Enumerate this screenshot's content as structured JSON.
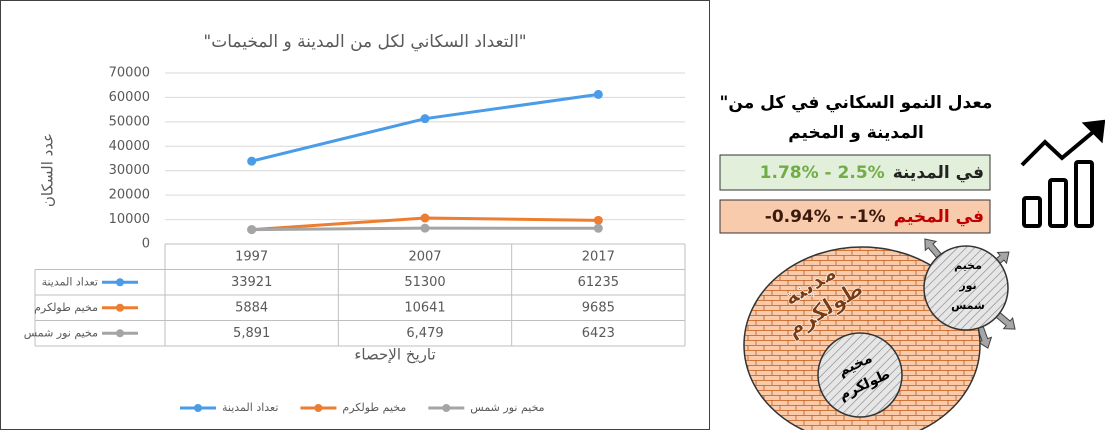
{
  "chart_data": {
    "type": "line",
    "title": "\"التعداد السكاني لكل من المدينة و المخيمات\"",
    "y_label": "عدد السكان",
    "x_label": "تاريخ الإحصاء",
    "categories": [
      "1997",
      "2007",
      "2017"
    ],
    "series": [
      {
        "name": "تعداد المدينة",
        "color": "#4a9be8",
        "values": [
          33921,
          51300,
          61235
        ]
      },
      {
        "name": "مخيم طولكرم",
        "color": "#ed7d31",
        "values": [
          5884,
          10641,
          9685
        ]
      },
      {
        "name": "مخيم نور شمس",
        "color": "#a5a5a5",
        "values": [
          5891,
          6479,
          6423
        ],
        "value_labels": [
          "5,891",
          "6,479",
          "6423"
        ]
      }
    ],
    "ylim": [
      0,
      70000
    ],
    "yticks": [
      0,
      10000,
      20000,
      30000,
      40000,
      50000,
      60000,
      70000
    ],
    "grid": true,
    "legend": "bottom"
  },
  "infographic": {
    "heading": [
      "\"معدل النمو السكاني في كل من",
      "المدينة و المخيم"
    ],
    "city_rate": {
      "range": "1.78% - 2.5%",
      "label": "في المدينة"
    },
    "camp_rate": {
      "range": "-0.94% - -1%",
      "label": "في المخيم"
    },
    "city": [
      "مدينة",
      "طولكرم"
    ],
    "camp_nur_shams": [
      "مخيم",
      "نور",
      "شمس"
    ],
    "camp_tulkarm": [
      "مخيم",
      "طولكرم"
    ]
  }
}
